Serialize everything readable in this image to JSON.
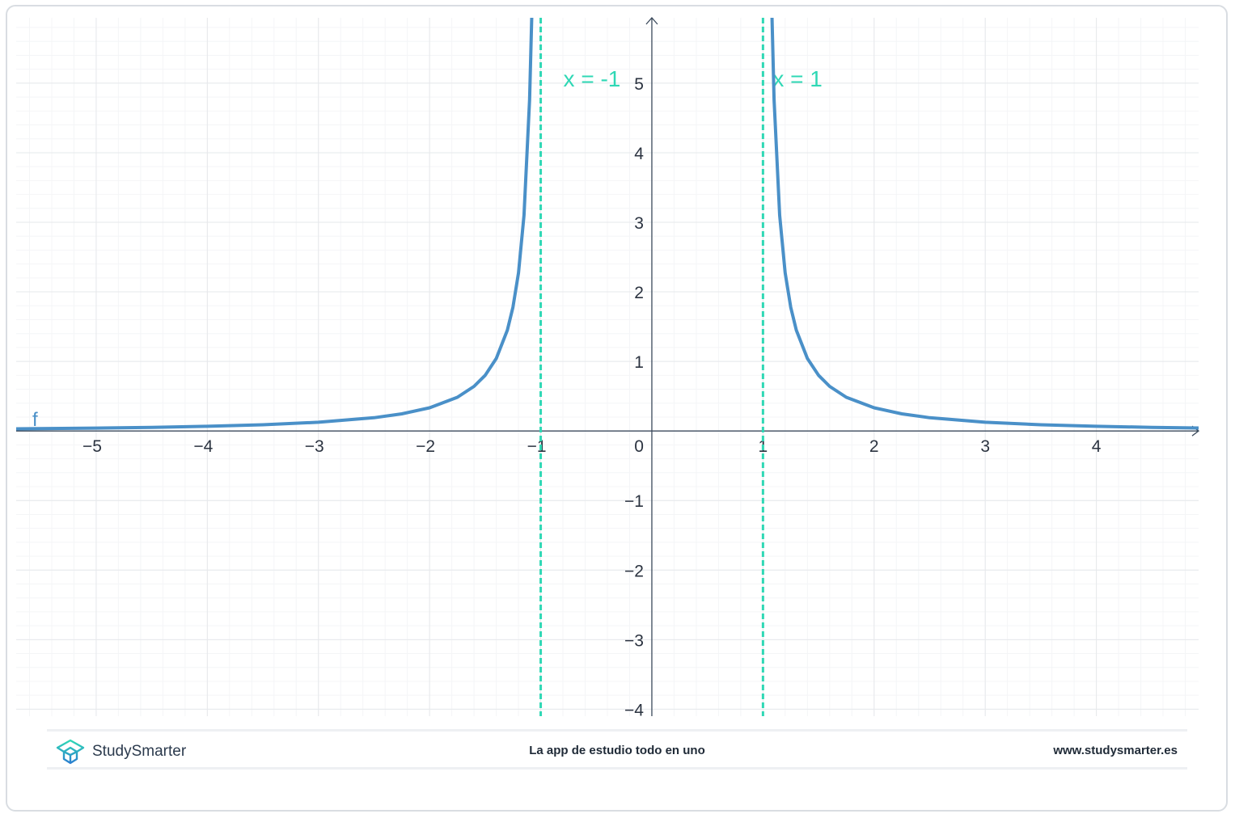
{
  "chart_data": {
    "type": "line",
    "title": "",
    "xlabel": "",
    "ylabel": "",
    "xlim": [
      -5.72,
      4.92
    ],
    "ylim": [
      -4.1,
      5.94
    ],
    "grid": true,
    "x_ticks": [
      "−5",
      "−4",
      "−3",
      "−2",
      "−1",
      "0",
      "1",
      "2",
      "3",
      "4"
    ],
    "x_tick_values": [
      -5,
      -4,
      -3,
      -2,
      -1,
      0,
      1,
      2,
      3,
      4
    ],
    "y_ticks": [
      "−4",
      "−3",
      "−2",
      "−1",
      "1",
      "2",
      "3",
      "4",
      "5"
    ],
    "y_tick_values": [
      -4,
      -3,
      -2,
      -1,
      1,
      2,
      3,
      4,
      5
    ],
    "series": [
      {
        "name": "f",
        "color": "#4a90c8",
        "branches": [
          [
            [
              -5.72,
              0.0315
            ],
            [
              -5,
              0.0417
            ],
            [
              -4.5,
              0.0519
            ],
            [
              -4,
              0.0667
            ],
            [
              -3.5,
              0.0889
            ],
            [
              -3,
              0.125
            ],
            [
              -2.5,
              0.1905
            ],
            [
              -2.25,
              0.2462
            ],
            [
              -2,
              0.3333
            ],
            [
              -1.75,
              0.4848
            ],
            [
              -1.6,
              0.641
            ],
            [
              -1.5,
              0.8
            ],
            [
              -1.4,
              1.0417
            ],
            [
              -1.3,
              1.4493
            ],
            [
              -1.25,
              1.7778
            ],
            [
              -1.2,
              2.2727
            ],
            [
              -1.15,
              3.1008
            ],
            [
              -1.1,
              4.7619
            ],
            [
              -1.08,
              6.0096
            ],
            [
              -1.05,
              9.7561
            ]
          ],
          [
            [
              1.05,
              9.7561
            ],
            [
              1.08,
              6.0096
            ],
            [
              1.1,
              4.7619
            ],
            [
              1.15,
              3.1008
            ],
            [
              1.2,
              2.2727
            ],
            [
              1.25,
              1.7778
            ],
            [
              1.3,
              1.4493
            ],
            [
              1.4,
              1.0417
            ],
            [
              1.5,
              0.8
            ],
            [
              1.6,
              0.641
            ],
            [
              1.75,
              0.4848
            ],
            [
              2,
              0.3333
            ],
            [
              2.25,
              0.2462
            ],
            [
              2.5,
              0.1905
            ],
            [
              3,
              0.125
            ],
            [
              3.5,
              0.0889
            ],
            [
              4,
              0.0667
            ],
            [
              4.5,
              0.0519
            ],
            [
              4.92,
              0.0431
            ]
          ]
        ]
      }
    ],
    "asymptotes": [
      {
        "x": -1,
        "label": "x = -1",
        "color": "#2fd8b5"
      },
      {
        "x": 1,
        "label": "x = 1",
        "color": "#2fd8b5"
      }
    ],
    "origin_label": "0"
  },
  "footer": {
    "brand": "StudySmarter",
    "tagline": "La app de estudio todo en uno",
    "url": "www.studysmarter.es"
  }
}
